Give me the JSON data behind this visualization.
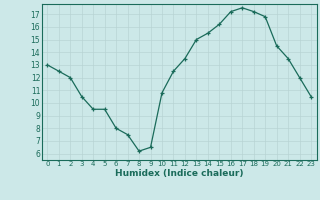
{
  "x": [
    0,
    1,
    2,
    3,
    4,
    5,
    6,
    7,
    8,
    9,
    10,
    11,
    12,
    13,
    14,
    15,
    16,
    17,
    18,
    19,
    20,
    21,
    22,
    23
  ],
  "y": [
    13,
    12.5,
    12,
    10.5,
    9.5,
    9.5,
    8,
    7.5,
    6.2,
    6.5,
    10.8,
    12.5,
    13.5,
    15,
    15.5,
    16.2,
    17.2,
    17.5,
    17.2,
    16.8,
    14.5,
    13.5,
    12,
    10.5
  ],
  "xlabel": "Humidex (Indice chaleur)",
  "xlim": [
    -0.5,
    23.5
  ],
  "ylim": [
    5.5,
    17.8
  ],
  "yticks": [
    6,
    7,
    8,
    9,
    10,
    11,
    12,
    13,
    14,
    15,
    16,
    17
  ],
  "xticks": [
    0,
    1,
    2,
    3,
    4,
    5,
    6,
    7,
    8,
    9,
    10,
    11,
    12,
    13,
    14,
    15,
    16,
    17,
    18,
    19,
    20,
    21,
    22,
    23
  ],
  "line_color": "#1a6b5a",
  "marker_color": "#1a6b5a",
  "bg_color": "#cce8e8",
  "grid_color": "#b8d4d4",
  "tick_color": "#1a6b5a",
  "label_color": "#1a6b5a",
  "border_color": "#1a6b5a"
}
